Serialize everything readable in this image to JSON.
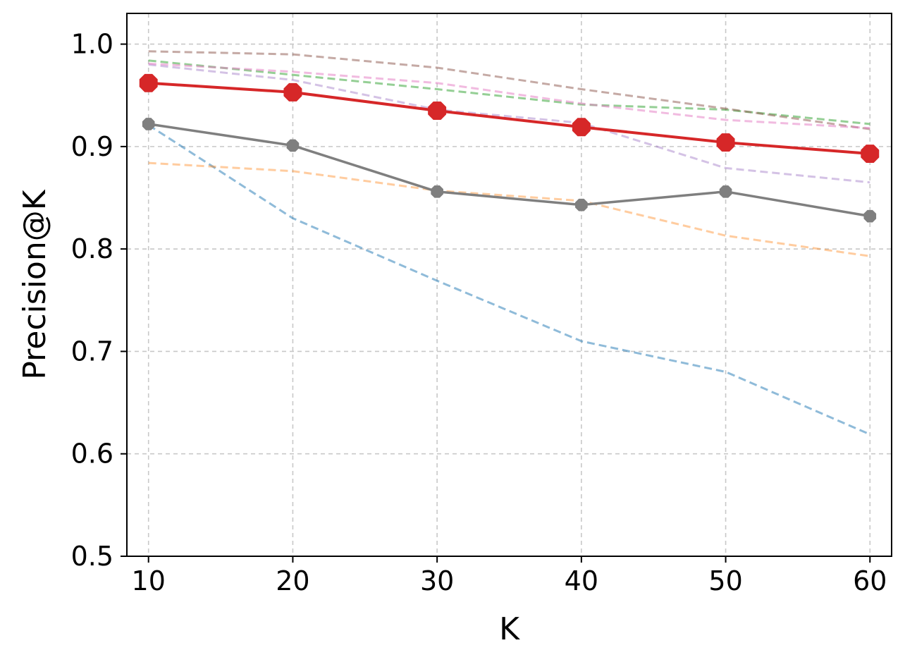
{
  "chart_data": {
    "type": "line",
    "xlabel": "K",
    "ylabel": "Precision@K",
    "xlim": [
      8.5,
      61.5
    ],
    "ylim": [
      0.5,
      1.03
    ],
    "grid": true,
    "x": [
      10,
      20,
      30,
      40,
      50,
      60
    ],
    "x_ticks": [
      "10",
      "20",
      "30",
      "40",
      "50",
      "60"
    ],
    "y_ticks": [
      0.5,
      0.6,
      0.7,
      0.8,
      0.9,
      1.0
    ],
    "y_tick_labels": [
      "0.5",
      "0.6",
      "0.7",
      "0.8",
      "0.9",
      "1.0"
    ],
    "series": [
      {
        "values": [
          0.921,
          0.83,
          0.769,
          0.71,
          0.68,
          0.619
        ],
        "color": "#1f77b4",
        "style": "dashed",
        "opacity": 0.5
      },
      {
        "values": [
          0.884,
          0.876,
          0.857,
          0.847,
          0.813,
          0.793
        ],
        "color": "#ff7f0e",
        "style": "dashed",
        "opacity": 0.4
      },
      {
        "values": [
          0.984,
          0.97,
          0.956,
          0.941,
          0.936,
          0.922
        ],
        "color": "#2ca02c",
        "style": "dashed",
        "opacity": 0.5
      },
      {
        "values": [
          0.98,
          0.965,
          0.936,
          0.923,
          0.879,
          0.865
        ],
        "color": "#9467bd",
        "style": "dashed",
        "opacity": 0.4
      },
      {
        "values": [
          0.993,
          0.99,
          0.977,
          0.956,
          0.937,
          0.917
        ],
        "color": "#8c564b",
        "style": "dashed",
        "opacity": 0.5
      },
      {
        "values": [
          0.981,
          0.973,
          0.962,
          0.942,
          0.926,
          0.918
        ],
        "color": "#e377c2",
        "style": "dashed",
        "opacity": 0.5
      },
      {
        "values": [
          0.922,
          0.901,
          0.856,
          0.843,
          0.856,
          0.832
        ],
        "color": "#7f7f7f",
        "style": "solid",
        "marker": "octagon-small"
      },
      {
        "values": [
          0.962,
          0.953,
          0.935,
          0.919,
          0.904,
          0.893
        ],
        "color": "#d62728",
        "style": "solid",
        "marker": "octagon-large"
      }
    ]
  }
}
